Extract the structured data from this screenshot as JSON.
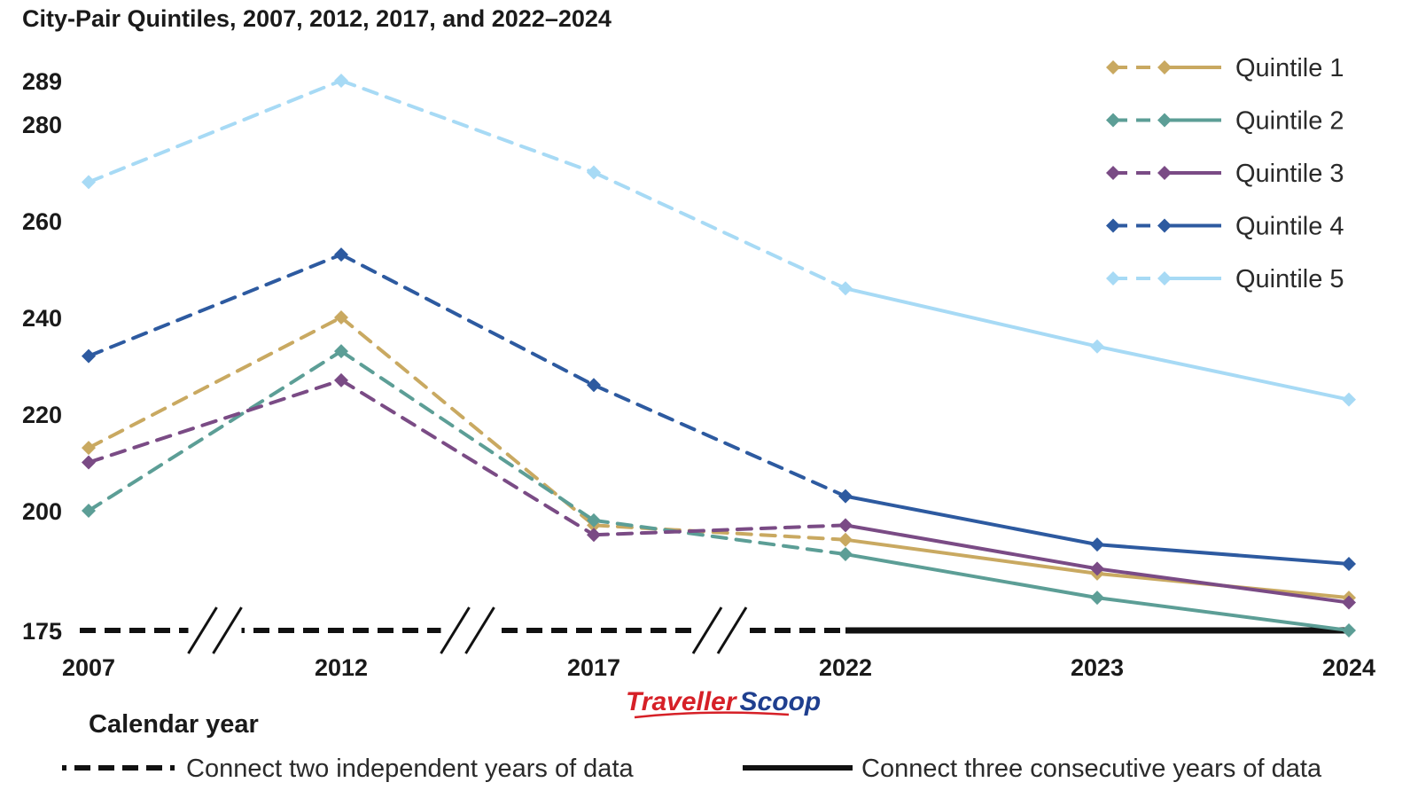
{
  "chart_data": {
    "type": "line",
    "title": "City-Pair Quintiles, 2007, 2012, 2017, and 2022–2024",
    "xlabel": "Calendar year",
    "ylabel": "",
    "categories": [
      "2007",
      "2012",
      "2017",
      "2022",
      "2023",
      "2024"
    ],
    "y_ticks": [
      "289",
      "280",
      "260",
      "240",
      "220",
      "200",
      "175"
    ],
    "ylim": [
      175,
      289
    ],
    "grid": false,
    "legend_position": "top-right",
    "series": [
      {
        "name": "Quintile 1",
        "color": "#c9a961",
        "values": [
          213,
          240,
          197,
          194,
          187,
          182
        ]
      },
      {
        "name": "Quintile 2",
        "color": "#5c9e96",
        "values": [
          200,
          233,
          198,
          191,
          182,
          175
        ]
      },
      {
        "name": "Quintile 3",
        "color": "#7a4b85",
        "values": [
          210,
          227,
          195,
          197,
          188,
          181
        ]
      },
      {
        "name": "Quintile 4",
        "color": "#2d5aa0",
        "values": [
          232,
          253,
          226,
          203,
          193,
          189
        ]
      },
      {
        "name": "Quintile 5",
        "color": "#a7daf5",
        "values": [
          268,
          289,
          270,
          246,
          234,
          223
        ]
      }
    ],
    "line_styles": [
      {
        "label": "Connect two independent years of data",
        "style": "dashed"
      },
      {
        "label": "Connect three consecutive years of data",
        "style": "solid"
      }
    ]
  },
  "logo": {
    "part_a": "Traveller",
    "part_b": "Scoop"
  }
}
